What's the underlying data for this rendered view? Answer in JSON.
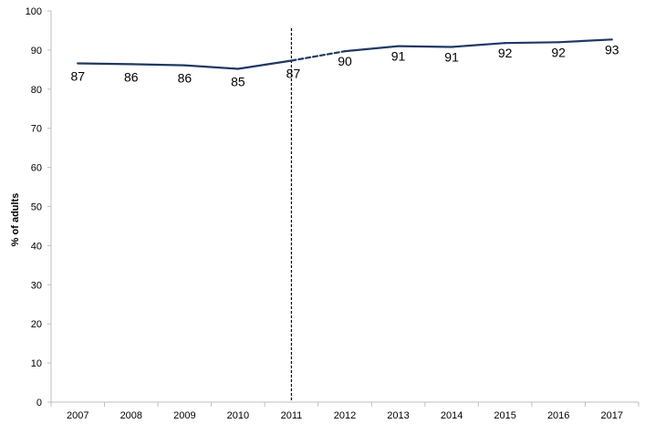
{
  "chart_data": {
    "type": "line",
    "title": "",
    "xlabel": "",
    "ylabel": "% of adults",
    "ylim": [
      0,
      100
    ],
    "yticks": [
      0,
      10,
      20,
      30,
      40,
      50,
      60,
      70,
      80,
      90,
      100
    ],
    "categories": [
      "2007",
      "2008",
      "2009",
      "2010",
      "2011",
      "2012",
      "2013",
      "2014",
      "2015",
      "2016",
      "2017"
    ],
    "series": [
      {
        "values": [
          86.6,
          86.4,
          86.1,
          85.2,
          87.3,
          89.7,
          91.0,
          90.8,
          91.8,
          92.0,
          92.7
        ],
        "labels": [
          "87",
          "86",
          "86",
          "85",
          "87",
          "90",
          "91",
          "91",
          "92",
          "92",
          "93"
        ],
        "dashed_segment": [
          "2011",
          "2012"
        ],
        "color": "#1f3864"
      }
    ],
    "reference_line": {
      "x": "2011",
      "style": "dashed",
      "color": "#000000"
    },
    "grid": false,
    "legend": "none"
  }
}
